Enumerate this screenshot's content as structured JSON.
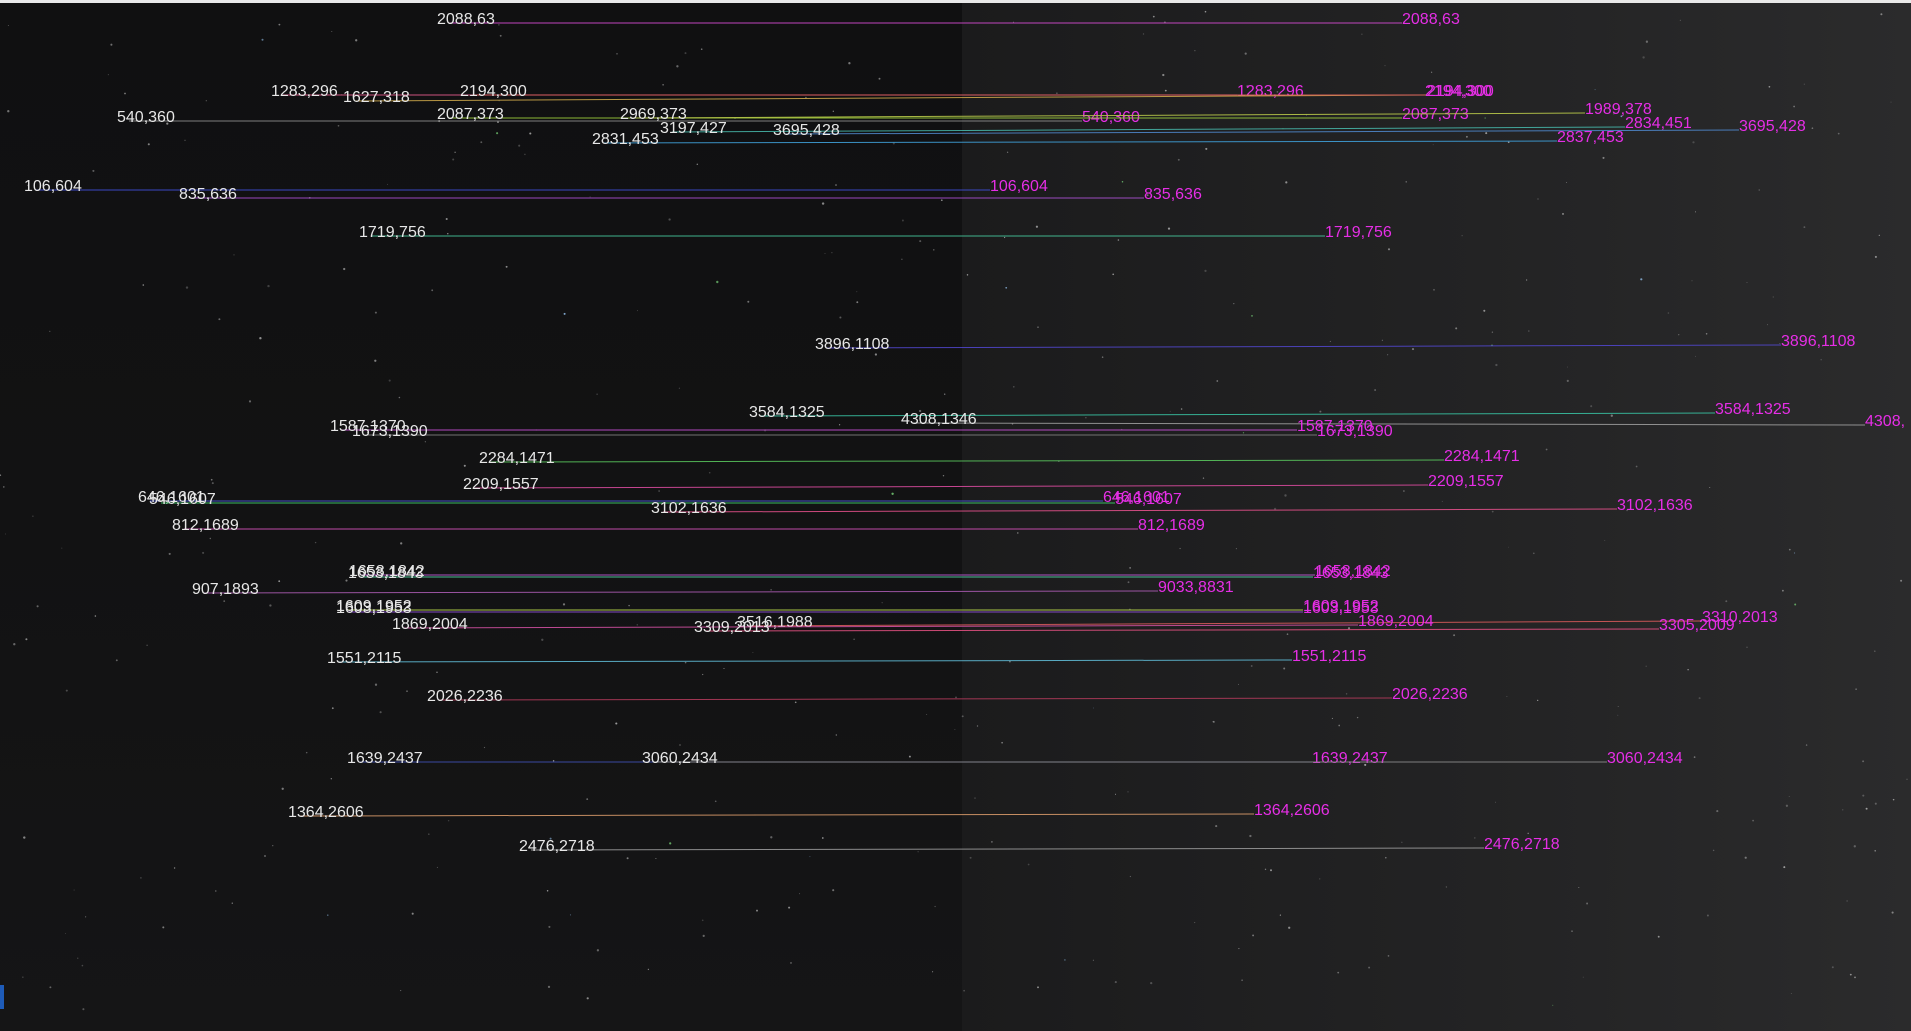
{
  "colors": {
    "background_left": "#111112",
    "background_right": "#262627",
    "left_label_color": "#e7e7e7",
    "right_label_color": "#e62ee6"
  },
  "matches": [
    {
      "left_label": "2088,63",
      "right_label": "2088,63",
      "line_color": "#d34bd0"
    },
    {
      "left_label": "1283,296",
      "right_label": "1283,296",
      "line_color": "#e05a8a"
    },
    {
      "left_label": "1627,318",
      "right_label": "2194,300",
      "line_color": "#caa54a"
    },
    {
      "left_label": "2194,300",
      "right_label": "2194,300",
      "line_color": "#e06060"
    },
    {
      "left_label": "540,360",
      "right_label": "540,360",
      "line_color": "#8a8a8a"
    },
    {
      "left_label": "2087,373",
      "right_label": "2087,373",
      "line_color": "#9acb3c"
    },
    {
      "left_label": "2969,373",
      "right_label": "1989,378",
      "line_color": "#b9c94a"
    },
    {
      "left_label": "3197,427",
      "right_label": "2834,451",
      "line_color": "#46b5a8"
    },
    {
      "left_label": "3695,428",
      "right_label": "3695,428",
      "line_color": "#4e86c9"
    },
    {
      "left_label": "2831,453",
      "right_label": "2837,453",
      "line_color": "#3f9fd8"
    },
    {
      "left_label": "106,604",
      "right_label": "106,604",
      "line_color": "#3f4fd6"
    },
    {
      "left_label": "835,636",
      "right_label": "835,636",
      "line_color": "#a84fd0"
    },
    {
      "left_label": "1719,756",
      "right_label": "1719,756",
      "line_color": "#46c49a"
    },
    {
      "left_label": "3896,1108",
      "right_label": "3896,1108",
      "line_color": "#5046c9"
    },
    {
      "left_label": "3584,1325",
      "right_label": "3584,1325",
      "line_color": "#38bfa0"
    },
    {
      "left_label": "4308,1346",
      "right_label": "4308,",
      "line_color": "#9c9c9c"
    },
    {
      "left_label": "1587,1370",
      "right_label": "1587,1370",
      "line_color": "#c44fd2"
    },
    {
      "left_label": "1673,1390",
      "right_label": "1673,1390",
      "line_color": "#7d7d7d"
    },
    {
      "left_label": "2284,1471",
      "right_label": "2284,1471",
      "line_color": "#58c45c"
    },
    {
      "left_label": "2209,1557",
      "right_label": "2209,1557",
      "line_color": "#d94b9e"
    },
    {
      "left_label": "646,1601",
      "right_label": "646,1601",
      "line_color": "#4a5ad8"
    },
    {
      "left_label": "546,1607",
      "right_label": "546,1607",
      "line_color": "#3fcf6a"
    },
    {
      "left_label": "3102,1636",
      "right_label": "3102,1636",
      "line_color": "#e2508a"
    },
    {
      "left_label": "812,1689",
      "right_label": "812,1689",
      "line_color": "#d24fb8"
    },
    {
      "left_label": "1658,1842",
      "right_label": "1658,1842",
      "line_color": "#bd5cd6"
    },
    {
      "left_label": "1653,1843",
      "right_label": "1653,1843",
      "line_color": "#4fd0a0"
    },
    {
      "left_label": "907,1893",
      "right_label": "9033,8831",
      "line_color": "#a85ab0"
    },
    {
      "left_label": "1609,1952",
      "right_label": "1609,1952",
      "line_color": "#b9d94a"
    },
    {
      "left_label": "1603,1953",
      "right_label": "1603,1953",
      "line_color": "#8e4fd6"
    },
    {
      "left_label": "3516,1988",
      "right_label": "3310,2013",
      "line_color": "#d65a5a"
    },
    {
      "left_label": "1869,2004",
      "right_label": "1869,2004",
      "line_color": "#d04fa0"
    },
    {
      "left_label": "3309,2013",
      "right_label": "3305,2009",
      "line_color": "#e05080"
    },
    {
      "left_label": "1551,2115",
      "right_label": "1551,2115",
      "line_color": "#5fbad4"
    },
    {
      "left_label": "2026,2236",
      "right_label": "2026,2236",
      "line_color": "#b03a5a"
    },
    {
      "left_label": "1639,2437",
      "right_label": "1639,2437",
      "line_color": "#3f4fb0"
    },
    {
      "left_label": "3060,2434",
      "right_label": "3060,2434",
      "line_color": "#8a8a8a"
    },
    {
      "left_label": "1364,2606",
      "right_label": "1364,2606",
      "line_color": "#d89a6a"
    },
    {
      "left_label": "2476,2718",
      "right_label": "2476,2718",
      "line_color": "#9a9a9a"
    }
  ]
}
